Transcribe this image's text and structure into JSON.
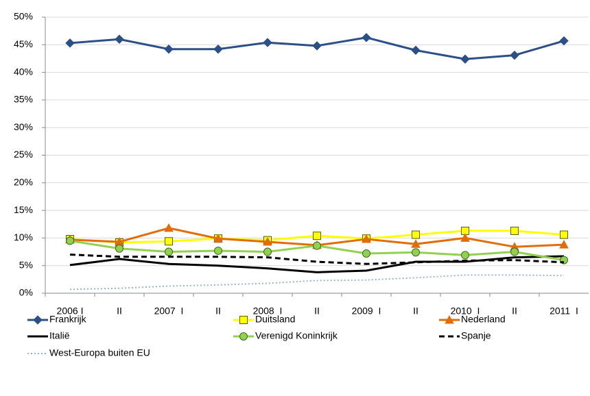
{
  "chart_data": {
    "type": "line",
    "categories": [
      "2006 I",
      "II",
      "2007  I",
      "II",
      "2008  I",
      "II",
      "2009  I",
      "II",
      "2010  I",
      "II",
      "2011  I"
    ],
    "ylim": [
      0,
      50
    ],
    "yticks": [
      {
        "value": 0,
        "label": "0%"
      },
      {
        "value": 5,
        "label": "5%"
      },
      {
        "value": 10,
        "label": "10%"
      },
      {
        "value": 15,
        "label": "15%"
      },
      {
        "value": 20,
        "label": "20%"
      },
      {
        "value": 25,
        "label": "25%"
      },
      {
        "value": 30,
        "label": "30%"
      },
      {
        "value": 35,
        "label": "35%"
      },
      {
        "value": 40,
        "label": "40%"
      },
      {
        "value": 45,
        "label": "45%"
      },
      {
        "value": 50,
        "label": "50%"
      }
    ],
    "grid": true,
    "series": [
      {
        "name": "Frankrijk",
        "color": "#2b4f86",
        "marker": "diamond",
        "marker_fill": "#2b4f86",
        "marker_stroke": "#2b4f86",
        "dash": "solid",
        "values": [
          45.3,
          46,
          44.2,
          44.2,
          45.4,
          44.8,
          46.3,
          44,
          42.4,
          43.1,
          45.7
        ]
      },
      {
        "name": "Duitsland",
        "color": "#ffff00",
        "marker": "square",
        "marker_fill": "#ffff00",
        "marker_stroke": "#5a5a00",
        "dash": "solid",
        "values": [
          9.8,
          9.2,
          9.4,
          9.9,
          9.6,
          10.4,
          9.9,
          10.6,
          11.3,
          11.3,
          10.6
        ]
      },
      {
        "name": "Nederland",
        "color": "#e36c09",
        "marker": "triangle",
        "marker_fill": "#e36c09",
        "marker_stroke": "#e36c09",
        "dash": "solid",
        "values": [
          9.7,
          9.3,
          11.8,
          9.9,
          9.3,
          8.7,
          9.8,
          8.9,
          10,
          8.4,
          8.8
        ]
      },
      {
        "name": "Italië",
        "color": "#000000",
        "marker": "none",
        "marker_fill": "#000000",
        "marker_stroke": "#000000",
        "dash": "solid",
        "values": [
          5.1,
          6.2,
          5.3,
          5,
          4.5,
          3.8,
          4.1,
          5.7,
          5.7,
          6.5,
          6.7
        ]
      },
      {
        "name": "Verenigd Koninkrijk",
        "color": "#92d050",
        "marker": "circle",
        "marker_fill": "#92d050",
        "marker_stroke": "#3a6b1a",
        "dash": "solid",
        "values": [
          9.5,
          8.1,
          7.5,
          7.7,
          7.5,
          8.6,
          7.2,
          7.4,
          6.9,
          7.5,
          6
        ]
      },
      {
        "name": "Spanje",
        "color": "#000000",
        "marker": "none",
        "marker_fill": "#000000",
        "marker_stroke": "#000000",
        "dash": "dashed",
        "values": [
          7,
          6.6,
          6.6,
          6.6,
          6.5,
          5.7,
          5.3,
          5.6,
          5.9,
          6,
          5.6
        ]
      },
      {
        "name": "West-Europa buiten EU",
        "color": "#95b3d7",
        "marker": "none",
        "marker_fill": "#95b3d7",
        "marker_stroke": "#95b3d7",
        "dash": "dotted",
        "values": [
          0.7,
          0.9,
          1.3,
          1.5,
          1.8,
          2.3,
          2.4,
          2.8,
          3.3,
          3.3,
          3.2
        ]
      }
    ]
  }
}
